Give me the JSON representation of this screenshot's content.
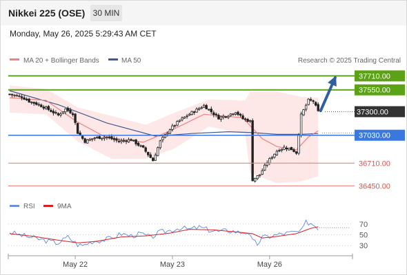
{
  "header": {
    "title": "Nikkei 225 (OSE)",
    "timeframe": "30 MIN",
    "timestamp": "Monday, May 26, 2025 5:29:43 AM CET"
  },
  "legend": {
    "ma20": "MA 20 + Bollinger Bands",
    "ma50": "MA 50",
    "copyright": "Research © 2025 Trading Central",
    "rsi": "RSI",
    "rsi_ma": "9MA"
  },
  "colors": {
    "ma20": "#f08080",
    "ma50": "#3c5a8c",
    "bollinger_fill": "#fde4e4",
    "resistance": "#5ba217",
    "pivot": "#3a78e0",
    "support": "#f08080",
    "last_price": "#333333",
    "arrow": "#2f5f9e",
    "rsi": "#6b8fe0",
    "rsi_ma": "#d62020"
  },
  "chart_data": [
    {
      "type": "candlestick",
      "ylim": [
        36350,
        37800
      ],
      "levels": [
        {
          "label": "37710.00",
          "value": 37710,
          "kind": "resistance"
        },
        {
          "label": "37550.00",
          "value": 37550,
          "kind": "resistance"
        },
        {
          "label": "37300.00",
          "value": 37300,
          "kind": "last"
        },
        {
          "label": "37030.00",
          "value": 37030,
          "kind": "pivot"
        },
        {
          "label": "36710.00",
          "value": 36710,
          "kind": "support"
        },
        {
          "label": "36450.00",
          "value": 36450,
          "kind": "support"
        }
      ],
      "x_labels": [
        {
          "label": "May 22",
          "index": 27
        },
        {
          "label": "May 23",
          "index": 67
        },
        {
          "label": "May 26",
          "index": 107
        }
      ],
      "close_path": [
        [
          0,
          37500
        ],
        [
          5,
          37470
        ],
        [
          8,
          37420
        ],
        [
          12,
          37380
        ],
        [
          15,
          37340
        ],
        [
          20,
          37260
        ],
        [
          23,
          37330
        ],
        [
          26,
          37280
        ],
        [
          28,
          37060
        ],
        [
          31,
          36960
        ],
        [
          35,
          37000
        ],
        [
          40,
          37010
        ],
        [
          45,
          36960
        ],
        [
          50,
          36980
        ],
        [
          55,
          36880
        ],
        [
          59,
          36740
        ],
        [
          62,
          36960
        ],
        [
          66,
          37100
        ],
        [
          70,
          37200
        ],
        [
          75,
          37290
        ],
        [
          80,
          37370
        ],
        [
          83,
          37300
        ],
        [
          86,
          37230
        ],
        [
          90,
          37260
        ],
        [
          93,
          37300
        ],
        [
          96,
          37220
        ],
        [
          99,
          37190
        ],
        [
          100,
          36520
        ],
        [
          103,
          36580
        ],
        [
          106,
          36720
        ],
        [
          110,
          36850
        ],
        [
          113,
          36890
        ],
        [
          116,
          36870
        ],
        [
          118,
          36830
        ],
        [
          120,
          37260
        ],
        [
          123,
          37430
        ],
        [
          125,
          37420
        ],
        [
          127,
          37300
        ]
      ],
      "ma20_path": [
        [
          0,
          37460
        ],
        [
          15,
          37430
        ],
        [
          28,
          37180
        ],
        [
          40,
          37000
        ],
        [
          55,
          36950
        ],
        [
          66,
          37080
        ],
        [
          80,
          37270
        ],
        [
          96,
          37230
        ],
        [
          104,
          36990
        ],
        [
          110,
          36900
        ],
        [
          118,
          36860
        ],
        [
          123,
          37010
        ],
        [
          127,
          37080
        ]
      ],
      "ma50_path": [
        [
          0,
          37540
        ],
        [
          20,
          37380
        ],
        [
          40,
          37170
        ],
        [
          60,
          37020
        ],
        [
          75,
          37050
        ],
        [
          90,
          37070
        ],
        [
          100,
          37060
        ],
        [
          110,
          37040
        ],
        [
          120,
          37040
        ],
        [
          127,
          37050
        ]
      ],
      "bollinger_upper": [
        [
          0,
          37600
        ],
        [
          15,
          37560
        ],
        [
          28,
          37350
        ],
        [
          42,
          37250
        ],
        [
          56,
          37150
        ],
        [
          68,
          37290
        ],
        [
          82,
          37440
        ],
        [
          97,
          37430
        ],
        [
          99,
          37530
        ],
        [
          110,
          37530
        ],
        [
          120,
          37470
        ],
        [
          127,
          37460
        ]
      ],
      "bollinger_lower": [
        [
          0,
          37290
        ],
        [
          15,
          37270
        ],
        [
          28,
          36960
        ],
        [
          42,
          36760
        ],
        [
          56,
          36760
        ],
        [
          68,
          36880
        ],
        [
          82,
          37130
        ],
        [
          97,
          37040
        ],
        [
          99,
          36600
        ],
        [
          110,
          36480
        ],
        [
          120,
          36500
        ],
        [
          127,
          36560
        ]
      ],
      "forecast_arrow": {
        "from": [
          128,
          37310
        ],
        "to": [
          134,
          37690
        ]
      }
    },
    {
      "type": "line",
      "name": "RSI",
      "ylim": [
        15,
        85
      ],
      "y_ticks": [
        {
          "label": "70",
          "value": 70
        },
        {
          "label": "50",
          "value": 50
        },
        {
          "label": "30",
          "value": 30
        }
      ],
      "rsi_path": [
        [
          0,
          55
        ],
        [
          4,
          50
        ],
        [
          8,
          46
        ],
        [
          12,
          42
        ],
        [
          16,
          38
        ],
        [
          20,
          35
        ],
        [
          24,
          46
        ],
        [
          28,
          32
        ],
        [
          30,
          30
        ],
        [
          34,
          38
        ],
        [
          38,
          40
        ],
        [
          42,
          44
        ],
        [
          46,
          52
        ],
        [
          50,
          48
        ],
        [
          54,
          52
        ],
        [
          58,
          45
        ],
        [
          62,
          55
        ],
        [
          66,
          58
        ],
        [
          70,
          63
        ],
        [
          74,
          60
        ],
        [
          78,
          64
        ],
        [
          82,
          59
        ],
        [
          86,
          56
        ],
        [
          90,
          58
        ],
        [
          94,
          55
        ],
        [
          98,
          55
        ],
        [
          100,
          38
        ],
        [
          102,
          33
        ],
        [
          104,
          45
        ],
        [
          108,
          48
        ],
        [
          112,
          52
        ],
        [
          116,
          54
        ],
        [
          120,
          56
        ],
        [
          122,
          73
        ],
        [
          124,
          72
        ],
        [
          126,
          66
        ],
        [
          127,
          63
        ]
      ],
      "rsi_ma_path": [
        [
          0,
          52
        ],
        [
          10,
          47
        ],
        [
          20,
          40
        ],
        [
          28,
          35
        ],
        [
          36,
          38
        ],
        [
          46,
          46
        ],
        [
          56,
          48
        ],
        [
          66,
          53
        ],
        [
          74,
          60
        ],
        [
          84,
          59
        ],
        [
          94,
          55
        ],
        [
          100,
          52
        ],
        [
          104,
          44
        ],
        [
          110,
          47
        ],
        [
          118,
          52
        ],
        [
          124,
          62
        ],
        [
          127,
          65
        ]
      ]
    }
  ]
}
